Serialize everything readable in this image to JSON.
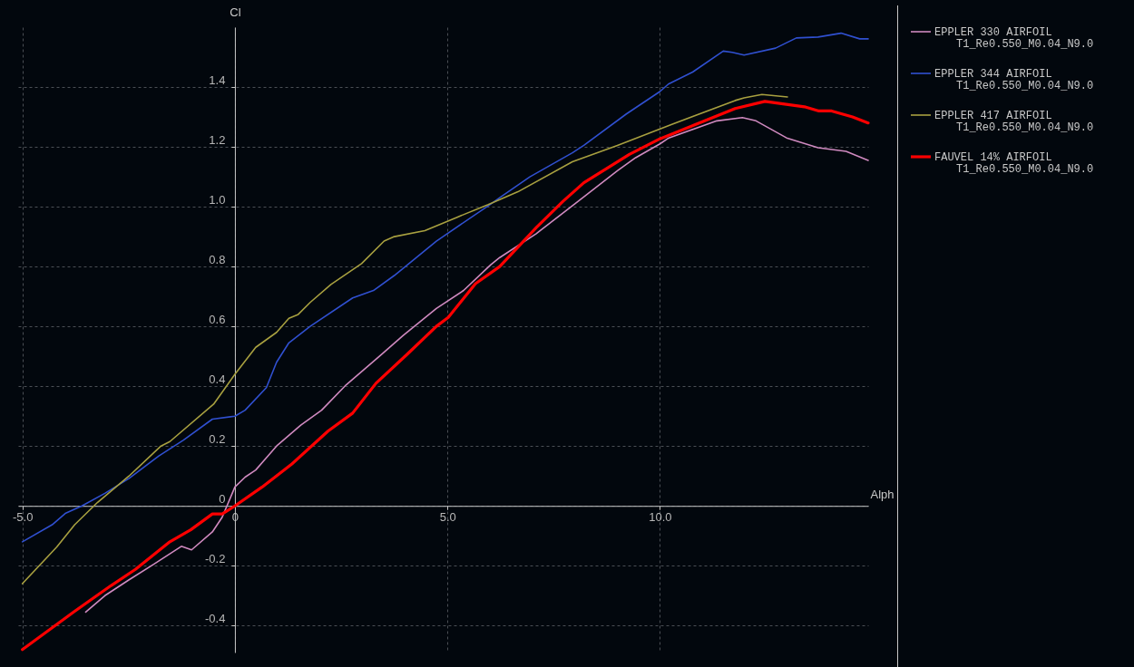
{
  "chart_data": {
    "type": "line",
    "xlabel": "Alph",
    "ylabel": "Cl",
    "xlim": [
      -5.1,
      14.9
    ],
    "ylim": [
      -0.49,
      1.6
    ],
    "xticks": [
      {
        "value": -5,
        "label": "-5.0"
      },
      {
        "value": 0,
        "label": "0"
      },
      {
        "value": 5,
        "label": "5.0"
      },
      {
        "value": 10,
        "label": "10.0"
      }
    ],
    "yticks": [
      -0.4,
      -0.2,
      0,
      0.2,
      0.4,
      0.6,
      0.8,
      {
        "value": 1,
        "label": "1.0"
      },
      1.2,
      1.4
    ],
    "grid": true,
    "legend": "right",
    "annotations": [
      "T1_Re0.550_M0.04_N9.0",
      "T1_Re0.550_M0.04_N9.0",
      "T1_Re0.550_M0.04_N9.0",
      "T1_Re0.550_M0.04_N9.0"
    ],
    "series": [
      {
        "name": "EPPLER 330 AIRFOIL",
        "color": "#d08ac0",
        "x": [
          -3.51,
          -3.06,
          -2.49,
          -1.91,
          -1.26,
          -1.02,
          -0.53,
          -0.3,
          0,
          0.24,
          0.49,
          0.98,
          1.55,
          2.04,
          2.62,
          3.4,
          3.96,
          4.74,
          5.38,
          6.02,
          6.23,
          7.09,
          8.0,
          9.0,
          9.43,
          10.0,
          10.21,
          11.34,
          11.94,
          12.26,
          12.98,
          13.72,
          14.38,
          14.9
        ],
        "values": [
          -0.355,
          -0.3,
          -0.247,
          -0.195,
          -0.135,
          -0.147,
          -0.087,
          -0.038,
          0.063,
          0.096,
          0.12,
          0.2,
          0.27,
          0.32,
          0.405,
          0.5,
          0.57,
          0.66,
          0.72,
          0.806,
          0.83,
          0.91,
          1.01,
          1.12,
          1.164,
          1.21,
          1.23,
          1.287,
          1.298,
          1.287,
          1.23,
          1.197,
          1.185,
          1.155
        ]
      },
      {
        "name": "EPPLER 344 AIRFOIL",
        "color": "#3050d0",
        "x": [
          -5.0,
          -4.3,
          -3.98,
          -3.6,
          -3.06,
          -2.49,
          -1.79,
          -1.21,
          -0.53,
          0,
          0.24,
          0.74,
          0.98,
          1.27,
          1.77,
          2.77,
          3.26,
          3.75,
          4.74,
          5.96,
          6.23,
          6.94,
          7.94,
          8.21,
          9.21,
          10.0,
          10.2,
          10.77,
          11.49,
          11.7,
          11.98,
          12.72,
          13.21,
          13.72,
          14.26,
          14.7,
          14.9
        ],
        "values": [
          -0.12,
          -0.063,
          -0.024,
          0.0,
          0.042,
          0.092,
          0.167,
          0.22,
          0.29,
          0.3,
          0.32,
          0.395,
          0.48,
          0.545,
          0.6,
          0.695,
          0.72,
          0.77,
          0.885,
          1.003,
          1.03,
          1.1,
          1.18,
          1.205,
          1.31,
          1.385,
          1.41,
          1.45,
          1.52,
          1.516,
          1.507,
          1.53,
          1.564,
          1.567,
          1.58,
          1.561,
          1.561
        ]
      },
      {
        "name": "EPPLER 417 AIRFOIL",
        "color": "#a8a040",
        "x": [
          -5.0,
          -4.19,
          -3.77,
          -3.23,
          -2.49,
          -1.74,
          -1.53,
          -0.5,
          0,
          0.49,
          0.98,
          1.27,
          1.49,
          1.77,
          2.26,
          2.98,
          3.51,
          3.75,
          4.47,
          5.23,
          5.96,
          6.66,
          7.94,
          9.0,
          10.28,
          11.77,
          11.98,
          12.4,
          13.0
        ],
        "values": [
          -0.26,
          -0.137,
          -0.063,
          0.012,
          0.1,
          0.2,
          0.215,
          0.34,
          0.44,
          0.53,
          0.58,
          0.627,
          0.64,
          0.68,
          0.74,
          0.81,
          0.885,
          0.9,
          0.92,
          0.965,
          1.007,
          1.05,
          1.15,
          1.205,
          1.275,
          1.355,
          1.364,
          1.375,
          1.367
        ]
      },
      {
        "name": "FAUVEL 14% AIRFOIL",
        "color": "#ff0000",
        "x": [
          -5.0,
          -3.77,
          -2.91,
          -2.34,
          -1.53,
          -1.04,
          -0.53,
          -0.3,
          0,
          0.64,
          1.34,
          2.19,
          2.77,
          3.32,
          4.04,
          4.74,
          5.02,
          5.66,
          6.23,
          7.09,
          7.72,
          8.21,
          9.28,
          10.0,
          11.77,
          12.47,
          13.4,
          13.74,
          14.04,
          14.53,
          14.9
        ],
        "values": [
          -0.48,
          -0.352,
          -0.266,
          -0.212,
          -0.12,
          -0.08,
          -0.027,
          -0.027,
          0.0,
          0.063,
          0.14,
          0.25,
          0.31,
          0.41,
          0.505,
          0.6,
          0.63,
          0.743,
          0.8,
          0.93,
          1.018,
          1.08,
          1.175,
          1.227,
          1.328,
          1.352,
          1.334,
          1.32,
          1.32,
          1.3,
          1.28
        ]
      }
    ]
  }
}
